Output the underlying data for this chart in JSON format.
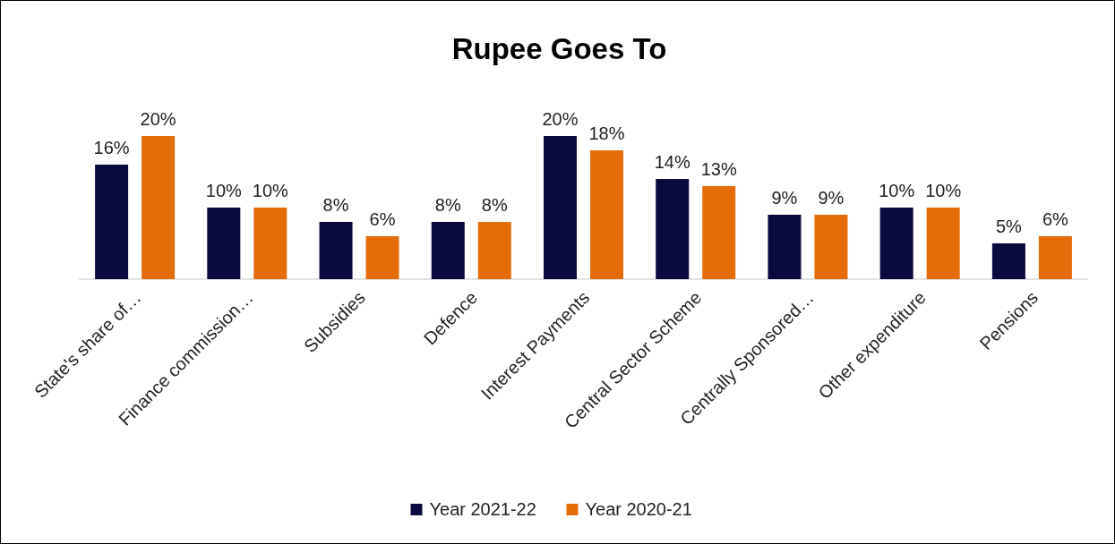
{
  "chart_data": {
    "type": "bar",
    "title": "Rupee Goes To",
    "categories": [
      "State's share of…",
      "Finance commission…",
      "Subsidies",
      "Defence",
      "Interest Payments",
      "Central Sector Scheme",
      "Centrally Sponsored…",
      "Other expenditure",
      "Pensions"
    ],
    "series": [
      {
        "name": "Year 2021-22",
        "color": "#0b0a3f",
        "values": [
          16,
          10,
          8,
          8,
          20,
          14,
          9,
          10,
          5
        ],
        "value_labels": [
          "16%",
          "10%",
          "8%",
          "8%",
          "20%",
          "14%",
          "9%",
          "10%",
          "5%"
        ]
      },
      {
        "name": "Year 2020-21",
        "color": "#e46c0a",
        "values": [
          20,
          10,
          6,
          8,
          18,
          13,
          9,
          10,
          6
        ],
        "value_labels": [
          "20%",
          "10%",
          "6%",
          "8%",
          "18%",
          "13%",
          "9%",
          "10%",
          "6%"
        ]
      }
    ],
    "legend": "bottom"
  }
}
